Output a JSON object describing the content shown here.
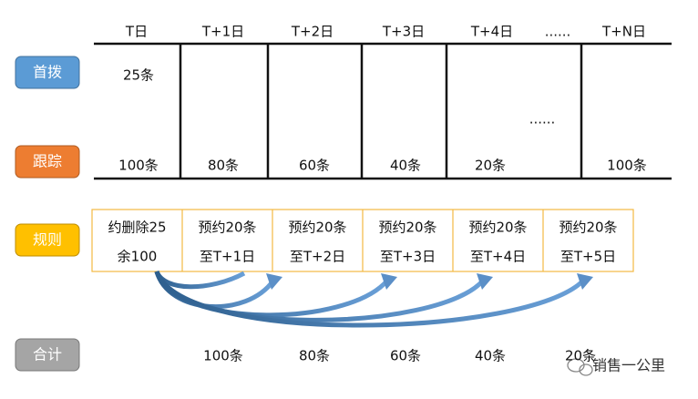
{
  "columns": [
    "T日",
    "T+1日",
    "T+2日",
    "T+3日",
    "T+4日",
    "......",
    "T+N日"
  ],
  "first_call": {
    "label": "首拨",
    "count": "25条",
    "ellipsis": "......"
  },
  "tracking": {
    "label": "跟踪",
    "cells": [
      "100条",
      "80条",
      "60条",
      "40条",
      "20条",
      "100条"
    ]
  },
  "rules": {
    "label": "规则",
    "cells": [
      [
        "约删除25",
        "余100"
      ],
      [
        "预约20条",
        "至T+1日"
      ],
      [
        "预约20条",
        "至T+2日"
      ],
      [
        "预约20条",
        "至T+3日"
      ],
      [
        "预约20条",
        "至T+4日"
      ],
      [
        "预约20条",
        "至T+5日"
      ]
    ]
  },
  "total": {
    "label": "合计",
    "cells": [
      "100条",
      "80条",
      "60条",
      "40条",
      "20条"
    ]
  },
  "watermark": "销售一公里"
}
